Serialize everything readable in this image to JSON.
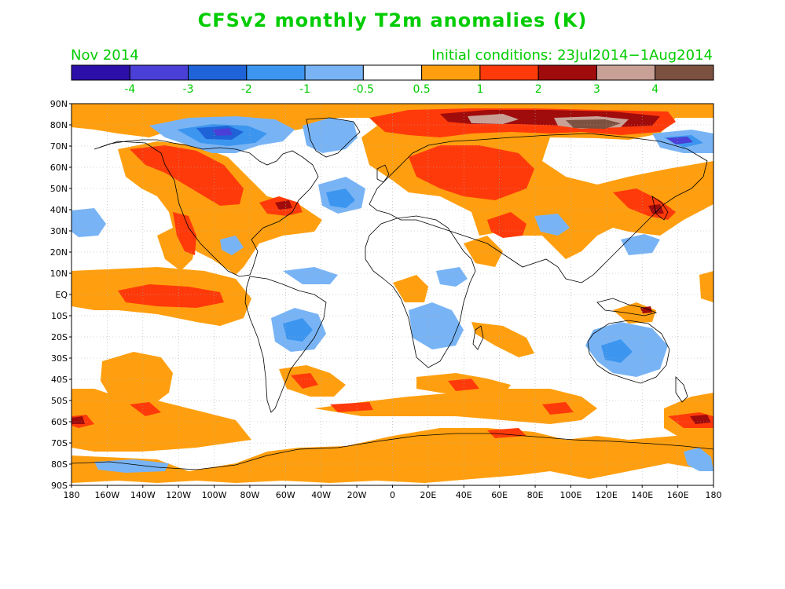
{
  "title": "CFSv2 monthly T2m anomalies (K)",
  "month_label": "Nov 2014",
  "initial_conditions": "Initial conditions: 23Jul2014−1Aug2014",
  "colorbar": {
    "bins": [
      {
        "color": "#2b0fa8",
        "range": "< -4"
      },
      {
        "color": "#4a3fd6",
        "range": "-4 to -3"
      },
      {
        "color": "#1f63d9",
        "range": "-3 to -2"
      },
      {
        "color": "#3c96f0",
        "range": "-2 to -1"
      },
      {
        "color": "#78b4f5",
        "range": "-1 to -0.5"
      },
      {
        "color": "#ffffff",
        "range": "-0.5 to 0.5"
      },
      {
        "color": "#ff9f0f",
        "range": "0.5 to 1"
      },
      {
        "color": "#ff3a0a",
        "range": "1 to 2"
      },
      {
        "color": "#a00b0b",
        "range": "2 to 3"
      },
      {
        "color": "#c9a096",
        "range": "3 to 4"
      },
      {
        "color": "#7d5140",
        "range": "> 4"
      }
    ],
    "tick_labels": [
      "-4",
      "-3",
      "-2",
      "-1",
      "-0.5",
      "0.5",
      "1",
      "2",
      "3",
      "4"
    ]
  },
  "map": {
    "lat_labels": [
      "90N",
      "80N",
      "70N",
      "60N",
      "50N",
      "40N",
      "30N",
      "20N",
      "10N",
      "EQ",
      "10S",
      "20S",
      "30S",
      "40S",
      "50S",
      "60S",
      "70S",
      "80S",
      "90S"
    ],
    "lon_labels": [
      "180",
      "160W",
      "140W",
      "120W",
      "100W",
      "80W",
      "60W",
      "40W",
      "20W",
      "0",
      "20E",
      "40E",
      "60E",
      "80E",
      "100E",
      "120E",
      "140E",
      "160E",
      "180"
    ],
    "colors": {
      "positive_weak": "#ff9f0f",
      "positive": "#ff3a0a",
      "positive_strong": "#a00b0b",
      "very_high": "#c9a096",
      "extreme": "#7d5140",
      "negative_weak": "#78b4f5",
      "negative": "#3c96f0",
      "negative_strong": "#1f63d9",
      "negative_very": "#4a3fd6",
      "grid": "#999999",
      "coast": "#000000"
    }
  }
}
